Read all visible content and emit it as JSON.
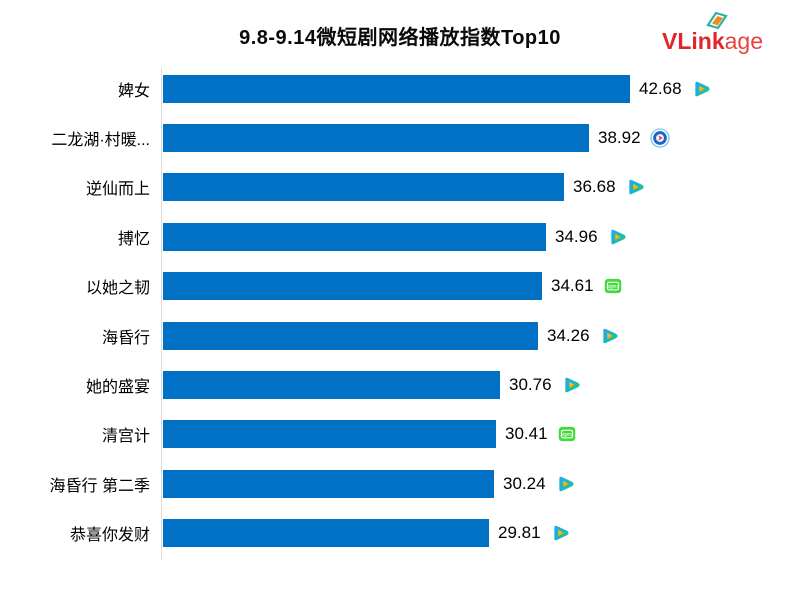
{
  "header": {
    "title": "9.8-9.14微短剧网络播放指数Top10"
  },
  "logo": {
    "bold": "VLink",
    "light": "age"
  },
  "colors": {
    "bar": "#0071C5",
    "axis_line": "#DCDCDC",
    "logo_red": "#E0262B",
    "tencent_blue": "#23A8F2",
    "tencent_green": "#31D345",
    "tencent_orange": "#FFA200",
    "iqiyi_green": "#3EDC3C",
    "circle_icon_blue": "#1667C9",
    "circle_icon_ring": "#7EC8F0",
    "circle_icon_red": "#E8332A"
  },
  "chart_data": {
    "type": "bar",
    "orientation": "horizontal",
    "title": "9.8-9.14微短剧网络播放指数Top10",
    "xlabel": "",
    "ylabel": "",
    "xlim": [
      0,
      45
    ],
    "grid": false,
    "legend": "none",
    "categories": [
      "婢女",
      "二龙湖·村暖...",
      "逆仙而上",
      "搏忆",
      "以她之韧",
      "海昏行",
      "她的盛宴",
      "清宫计",
      "海昏行 第二季",
      "恭喜你发财"
    ],
    "values": [
      42.68,
      38.92,
      36.68,
      34.96,
      34.61,
      34.26,
      30.76,
      30.41,
      30.24,
      29.81
    ],
    "value_labels": [
      "42.68",
      "38.92",
      "36.68",
      "34.96",
      "34.61",
      "34.26",
      "30.76",
      "30.41",
      "30.24",
      "29.81"
    ],
    "platform_icons": [
      "tencent-video-icon",
      "red-arrow-circle-icon",
      "tencent-video-icon",
      "tencent-video-icon",
      "iqiyi-icon",
      "tencent-video-icon",
      "tencent-video-icon",
      "iqiyi-icon",
      "tencent-video-icon",
      "tencent-video-icon"
    ]
  }
}
